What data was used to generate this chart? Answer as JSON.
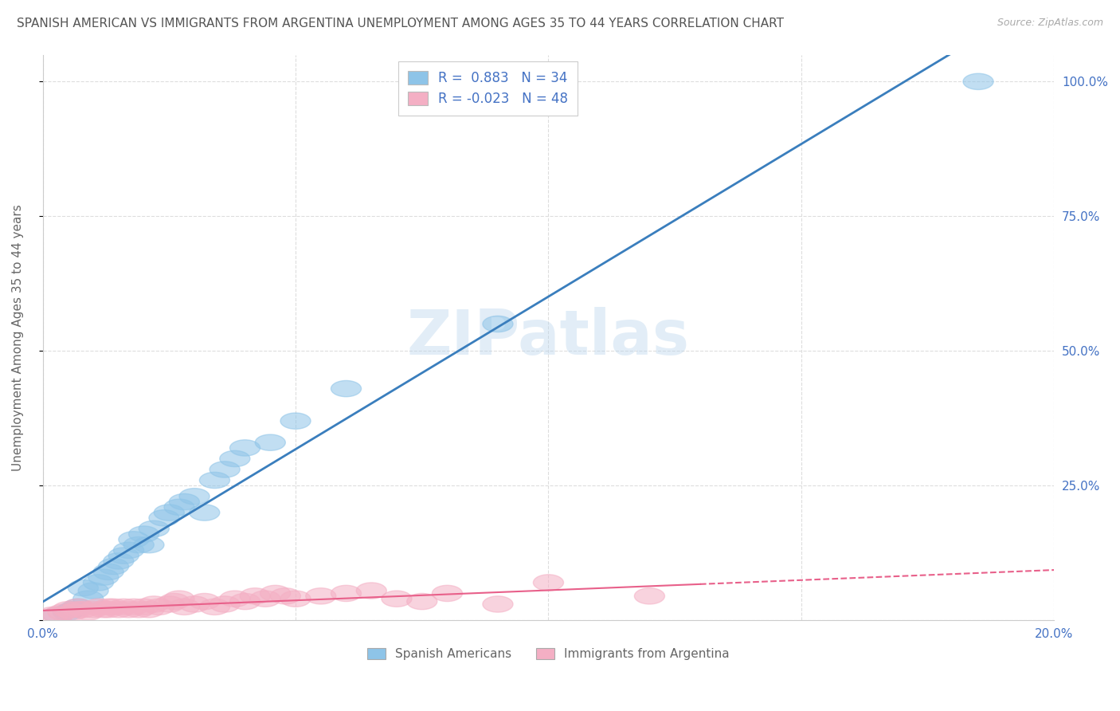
{
  "title": "SPANISH AMERICAN VS IMMIGRANTS FROM ARGENTINA UNEMPLOYMENT AMONG AGES 35 TO 44 YEARS CORRELATION CHART",
  "source": "Source: ZipAtlas.com",
  "ylabel": "Unemployment Among Ages 35 to 44 years",
  "xlim": [
    0.0,
    0.2
  ],
  "ylim": [
    0.0,
    1.05
  ],
  "yticks": [
    0.0,
    0.25,
    0.5,
    0.75,
    1.0
  ],
  "ytick_labels": [
    "",
    "25.0%",
    "50.0%",
    "75.0%",
    "100.0%"
  ],
  "xticks": [
    0.0,
    0.05,
    0.1,
    0.15,
    0.2
  ],
  "xtick_labels": [
    "0.0%",
    "",
    "",
    "",
    "20.0%"
  ],
  "blue_R": 0.883,
  "blue_N": 34,
  "pink_R": -0.023,
  "pink_N": 48,
  "blue_color": "#8ec4e8",
  "pink_color": "#f4afc4",
  "blue_line_color": "#3a7ebd",
  "pink_line_color": "#e8608a",
  "background_color": "#ffffff",
  "grid_color": "#dddddd",
  "watermark": "ZIPatlas",
  "legend_label_blue": "Spanish Americans",
  "legend_label_pink": "Immigrants from Argentina",
  "title_color": "#555555",
  "axis_label_color": "#666666",
  "tick_label_color": "#4472c4",
  "blue_scatter_x": [
    0.003,
    0.005,
    0.006,
    0.007,
    0.008,
    0.009,
    0.01,
    0.011,
    0.012,
    0.013,
    0.014,
    0.015,
    0.016,
    0.017,
    0.018,
    0.019,
    0.02,
    0.021,
    0.022,
    0.024,
    0.025,
    0.027,
    0.028,
    0.03,
    0.032,
    0.034,
    0.036,
    0.038,
    0.04,
    0.045,
    0.05,
    0.06,
    0.09,
    0.185
  ],
  "blue_scatter_y": [
    0.01,
    0.015,
    0.02,
    0.025,
    0.06,
    0.04,
    0.055,
    0.07,
    0.08,
    0.09,
    0.1,
    0.11,
    0.12,
    0.13,
    0.15,
    0.14,
    0.16,
    0.14,
    0.17,
    0.19,
    0.2,
    0.21,
    0.22,
    0.23,
    0.2,
    0.26,
    0.28,
    0.3,
    0.32,
    0.33,
    0.37,
    0.43,
    0.55,
    1.0
  ],
  "pink_scatter_x": [
    0.002,
    0.003,
    0.004,
    0.005,
    0.006,
    0.007,
    0.007,
    0.008,
    0.009,
    0.01,
    0.011,
    0.012,
    0.013,
    0.013,
    0.014,
    0.015,
    0.016,
    0.017,
    0.018,
    0.019,
    0.02,
    0.021,
    0.022,
    0.023,
    0.025,
    0.026,
    0.027,
    0.028,
    0.03,
    0.032,
    0.034,
    0.036,
    0.038,
    0.04,
    0.042,
    0.044,
    0.046,
    0.048,
    0.05,
    0.055,
    0.06,
    0.065,
    0.07,
    0.075,
    0.08,
    0.09,
    0.1,
    0.12
  ],
  "pink_scatter_y": [
    0.01,
    0.01,
    0.015,
    0.02,
    0.015,
    0.02,
    0.025,
    0.02,
    0.015,
    0.02,
    0.025,
    0.02,
    0.025,
    0.02,
    0.025,
    0.02,
    0.025,
    0.02,
    0.025,
    0.02,
    0.025,
    0.02,
    0.03,
    0.025,
    0.03,
    0.035,
    0.04,
    0.025,
    0.03,
    0.035,
    0.025,
    0.03,
    0.04,
    0.035,
    0.045,
    0.04,
    0.05,
    0.045,
    0.04,
    0.045,
    0.05,
    0.055,
    0.04,
    0.035,
    0.05,
    0.03,
    0.07,
    0.045
  ],
  "pink_line_solid_end": 0.13
}
